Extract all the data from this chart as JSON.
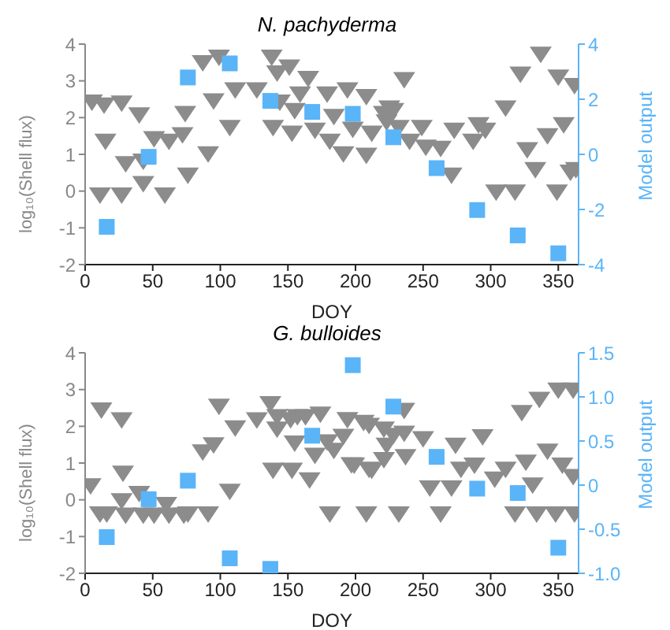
{
  "chart_data": [
    {
      "type": "scatter",
      "title": "N. pachyderma",
      "xlabel": "DOY",
      "ylabel": "log₁₀(Shell flux)",
      "y2label": "Model output",
      "xlim": [
        0,
        365
      ],
      "xticks": [
        0,
        50,
        100,
        150,
        200,
        250,
        300,
        350
      ],
      "ylim": [
        -2,
        4
      ],
      "yticks": [
        -2,
        -1,
        0,
        1,
        2,
        3,
        4
      ],
      "y2lim": [
        -4,
        4
      ],
      "y2ticks": [
        -4,
        -2,
        0,
        2,
        4
      ],
      "series": [
        {
          "color": "#8c8c8c",
          "marker": "triangle",
          "x": [
            5,
            14,
            27,
            40,
            15,
            30,
            43,
            11,
            27,
            59,
            43,
            51,
            62,
            72,
            74,
            76,
            91,
            95,
            87,
            99,
            107,
            111,
            127,
            138,
            142,
            151,
            139,
            144,
            155,
            159,
            165,
            153,
            170,
            179,
            181,
            184,
            191,
            194,
            198,
            208,
            208,
            212,
            221,
            225,
            228,
            223,
            236,
            232,
            240,
            249,
            252,
            263,
            273,
            271,
            287,
            291,
            296,
            304,
            318,
            311,
            322,
            327,
            333,
            337,
            342,
            349,
            350,
            354,
            359,
            362,
            363
          ],
          "values": [
            2.45,
            2.37,
            2.42,
            2.1,
            1.38,
            0.77,
            0.23,
            -0.08,
            -0.08,
            -0.08,
            0.84,
            1.45,
            1.38,
            1.56,
            2.14,
            0.46,
            1.04,
            2.48,
            3.52,
            3.67,
            1.76,
            2.78,
            2.78,
            3.67,
            3.24,
            3.4,
            1.76,
            2.45,
            2.22,
            2.67,
            3.09,
            1.6,
            1.68,
            2.67,
            1.38,
            2.06,
            1.04,
            2.78,
            1.71,
            2.6,
            1.0,
            1.6,
            2.14,
            2.29,
            2.22,
            1.91,
            3.06,
            1.76,
            1.38,
            1.76,
            1.22,
            1.19,
            1.68,
            0.46,
            1.38,
            1.83,
            1.68,
            0,
            0,
            2.29,
            3.21,
            1.15,
            0.61,
            3.75,
            1.53,
            0,
            3.13,
            1.83,
            0.54,
            2.9,
            0.61
          ]
        },
        {
          "color": "#5ab4f8",
          "marker": "square",
          "axis": "y2",
          "x": [
            16,
            47,
            76,
            107,
            137,
            168,
            198,
            228,
            260,
            290,
            320,
            350
          ],
          "values": [
            -2.63,
            -0.09,
            2.79,
            3.3,
            1.94,
            1.54,
            1.47,
            0.62,
            -0.5,
            -2.02,
            -2.94,
            -3.59
          ]
        }
      ]
    },
    {
      "type": "scatter",
      "title": "G. bulloides",
      "xlabel": "DOY",
      "ylabel": "log₁₀(Shell flux)",
      "y2label": "Model output",
      "xlim": [
        0,
        365
      ],
      "xticks": [
        0,
        50,
        100,
        150,
        200,
        250,
        300,
        350
      ],
      "ylim": [
        -2,
        4
      ],
      "yticks": [
        -2,
        -1,
        0,
        1,
        2,
        3,
        4
      ],
      "y2lim": [
        -1,
        1.5
      ],
      "y2ticks": [
        {
          "value": -1,
          "label": "-1.0"
        },
        -0.5,
        0,
        0.5,
        {
          "value": 1,
          "label": "1.0"
        },
        1.5
      ],
      "series": [
        {
          "color": "#8c8c8c",
          "marker": "triangle",
          "x": [
            4,
            12,
            27,
            28,
            11,
            16,
            27,
            30,
            40,
            43,
            51,
            60,
            62,
            73,
            76,
            91,
            87,
            95,
            99,
            107,
            111,
            127,
            137,
            139,
            142,
            142,
            152,
            153,
            155,
            157,
            163,
            166,
            170,
            174,
            179,
            181,
            184,
            191,
            194,
            197,
            206,
            208,
            212,
            210,
            210,
            199,
            221,
            223,
            221,
            228,
            236,
            236,
            237,
            232,
            250,
            255,
            263,
            271,
            274,
            278,
            288,
            294,
            303,
            311,
            318,
            323,
            326,
            331,
            334,
            336,
            342,
            348,
            350,
            353,
            361,
            362,
            361
          ],
          "values": [
            0.41,
            2.47,
            2.2,
            0.75,
            -0.36,
            -0.36,
            0,
            -0.39,
            0.2,
            -0.39,
            -0.39,
            -0.1,
            -0.39,
            -0.39,
            -0.36,
            -0.36,
            1.33,
            1.52,
            2.57,
            0.26,
            1.98,
            2.2,
            2.64,
            0.83,
            2.29,
            1.95,
            2.21,
            0.83,
            1.57,
            2.29,
            2.29,
            0.57,
            1.24,
            2.36,
            1.6,
            -0.36,
            1.37,
            1.75,
            2.21,
            0.98,
            2.13,
            -0.36,
            0.83,
            2.05,
            0.86,
            0.97,
            1.95,
            1.51,
            1.12,
            1.78,
            2.46,
            1.84,
            1.2,
            -0.36,
            1.69,
            0.35,
            -0.36,
            0.35,
            1.51,
            0.86,
            0.97,
            1.74,
            0.59,
            0.86,
            -0.36,
            2.4,
            1.05,
            0.43,
            -0.36,
            2.76,
            1.35,
            -0.36,
            3.01,
            0.97,
            3.01,
            -0.36,
            0.66
          ]
        },
        {
          "color": "#5ab4f8",
          "marker": "square",
          "axis": "y2",
          "x": [
            16,
            47,
            76,
            107,
            137,
            168,
            198,
            228,
            260,
            290,
            320,
            350
          ],
          "values": [
            -0.59,
            -0.16,
            0.05,
            -0.83,
            -0.95,
            0.56,
            1.36,
            0.89,
            0.32,
            -0.04,
            -0.09,
            -0.71
          ]
        }
      ]
    }
  ]
}
